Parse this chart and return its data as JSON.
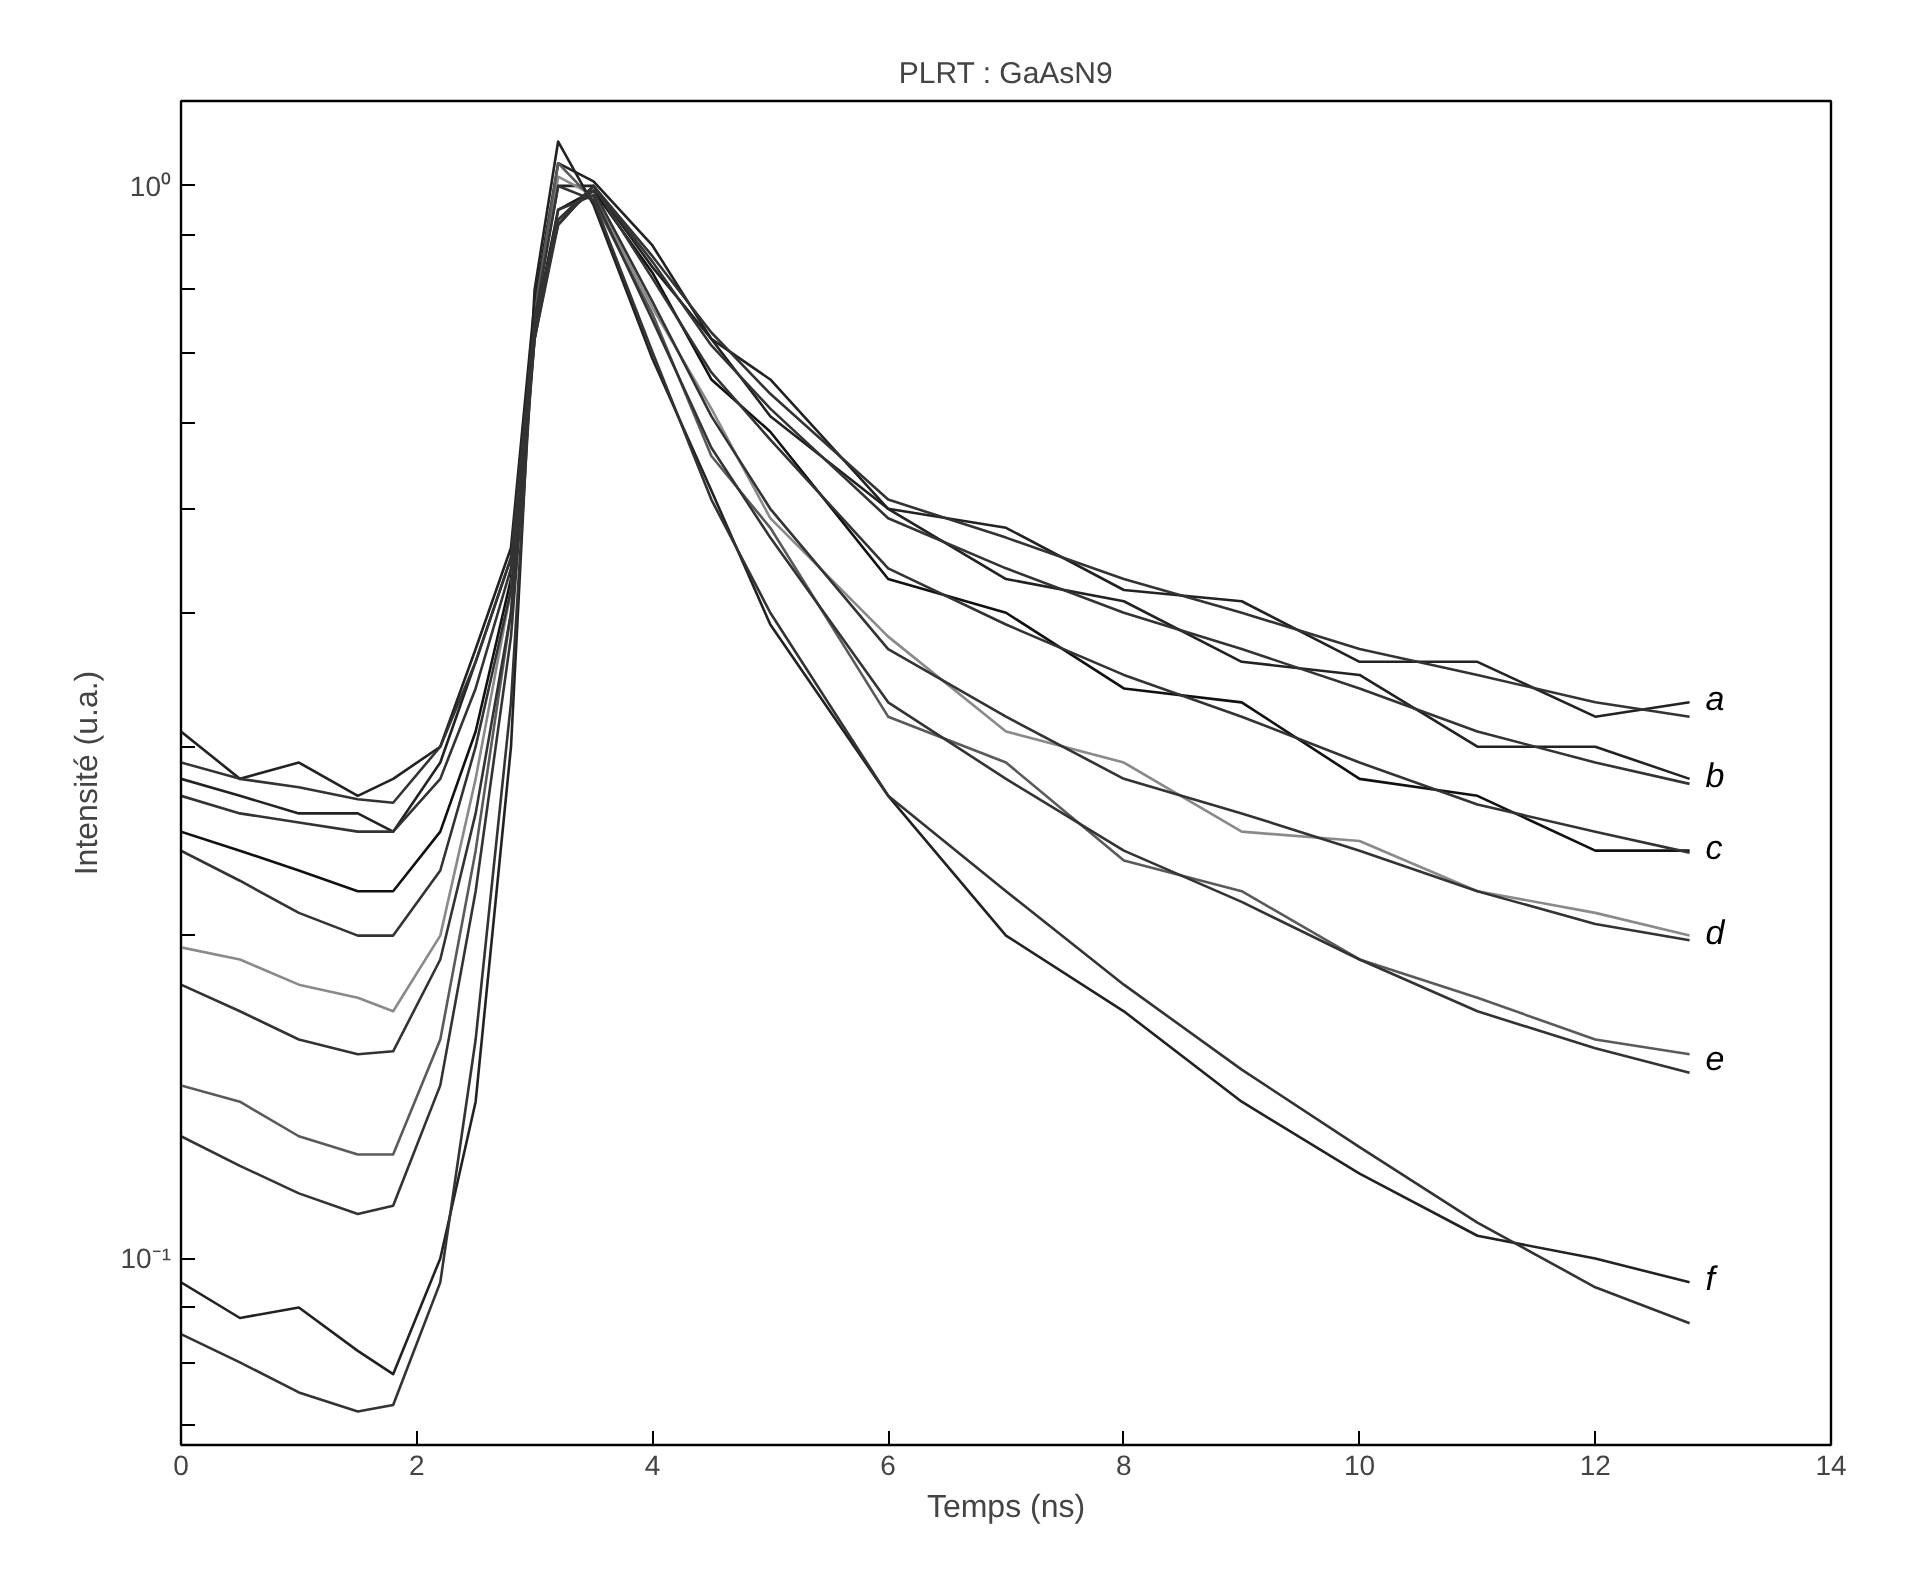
{
  "chart_data": {
    "type": "line",
    "title": "PLRT : GaAsN9",
    "xlabel": "Temps (ns)",
    "ylabel": "Intensité (u.a.)",
    "x": [
      0,
      0.5,
      1,
      1.5,
      1.8,
      2.2,
      2.5,
      2.8,
      3.0,
      3.2,
      3.5,
      4,
      4.5,
      5,
      6,
      7,
      8,
      9,
      10,
      11,
      12,
      12.8
    ],
    "log": "y",
    "grid": false,
    "legend": false,
    "marker": "none",
    "line_style": "solid",
    "xlim": [
      0,
      14
    ],
    "xticks": [
      0,
      2,
      4,
      6,
      8,
      10,
      12,
      14
    ],
    "ylim": [
      0.067,
      1.2
    ],
    "yticks": [
      {
        "value": 0.07,
        "label": null
      },
      {
        "value": 0.08,
        "label": null
      },
      {
        "value": 0.09,
        "label": null
      },
      {
        "value": 0.1,
        "label": "10⁻¹"
      },
      {
        "value": 0.2,
        "label": null
      },
      {
        "value": 0.3,
        "label": null
      },
      {
        "value": 0.4,
        "label": null
      },
      {
        "value": 0.5,
        "label": null
      },
      {
        "value": 0.6,
        "label": null
      },
      {
        "value": 0.7,
        "label": null
      },
      {
        "value": 0.8,
        "label": null
      },
      {
        "value": 0.9,
        "label": null
      },
      {
        "value": 1,
        "label": "10⁰"
      }
    ],
    "series": [
      {
        "name": "a",
        "color": "#222222",
        "values": [
          0.31,
          0.28,
          0.29,
          0.27,
          0.28,
          0.3,
          0.37,
          0.46,
          0.78,
          1.05,
          1.01,
          0.88,
          0.72,
          0.66,
          0.5,
          0.48,
          0.42,
          0.41,
          0.36,
          0.36,
          0.32,
          0.33
        ]
      },
      {
        "name": "b",
        "color": "#222222",
        "values": [
          0.28,
          0.27,
          0.26,
          0.26,
          0.25,
          0.29,
          0.36,
          0.45,
          0.76,
          1.0,
          1.0,
          0.84,
          0.72,
          0.61,
          0.5,
          0.43,
          0.41,
          0.36,
          0.35,
          0.3,
          0.3,
          0.28
        ]
      },
      {
        "name": "c",
        "color": "#111111",
        "values": [
          0.25,
          0.24,
          0.23,
          0.22,
          0.22,
          0.25,
          0.31,
          0.43,
          0.74,
          0.95,
          0.99,
          0.83,
          0.66,
          0.59,
          0.43,
          0.4,
          0.34,
          0.33,
          0.28,
          0.27,
          0.24,
          0.24
        ]
      },
      {
        "name": "d",
        "color": "#8a8a8a",
        "values": [
          0.195,
          0.19,
          0.18,
          0.175,
          0.17,
          0.2,
          0.28,
          0.42,
          0.75,
          1.02,
          0.98,
          0.77,
          0.62,
          0.49,
          0.38,
          0.31,
          0.29,
          0.25,
          0.245,
          0.22,
          0.21,
          0.2
        ]
      },
      {
        "name": "e",
        "color": "#5a5a5a",
        "values": [
          0.145,
          0.14,
          0.13,
          0.125,
          0.125,
          0.16,
          0.24,
          0.4,
          0.76,
          1.05,
          0.97,
          0.76,
          0.56,
          0.48,
          0.32,
          0.29,
          0.235,
          0.22,
          0.19,
          0.175,
          0.16,
          0.155
        ]
      },
      {
        "name": "f",
        "color": "#222222",
        "values": [
          0.095,
          0.088,
          0.09,
          0.082,
          0.078,
          0.1,
          0.14,
          0.3,
          0.8,
          1.1,
          0.96,
          0.69,
          0.52,
          0.39,
          0.27,
          0.2,
          0.17,
          0.14,
          0.12,
          0.105,
          0.1,
          0.095
        ]
      },
      {
        "color": "#333333",
        "values": [
          0.29,
          0.28,
          0.275,
          0.268,
          0.266,
          0.3,
          0.36,
          0.45,
          0.75,
          0.93,
          1.0,
          0.86,
          0.73,
          0.64,
          0.51,
          0.47,
          0.43,
          0.4,
          0.37,
          0.35,
          0.33,
          0.32
        ]
      },
      {
        "color": "#333333",
        "values": [
          0.27,
          0.26,
          0.255,
          0.25,
          0.25,
          0.28,
          0.34,
          0.44,
          0.74,
          0.92,
          1.0,
          0.85,
          0.71,
          0.62,
          0.49,
          0.44,
          0.4,
          0.37,
          0.34,
          0.31,
          0.29,
          0.277
        ]
      },
      {
        "color": "#333333",
        "values": [
          0.24,
          0.225,
          0.21,
          0.2,
          0.2,
          0.23,
          0.3,
          0.42,
          0.72,
          0.92,
          1.0,
          0.82,
          0.67,
          0.58,
          0.44,
          0.39,
          0.35,
          0.32,
          0.29,
          0.265,
          0.25,
          0.239
        ]
      },
      {
        "color": "#333333",
        "values": [
          0.18,
          0.17,
          0.16,
          0.155,
          0.156,
          0.19,
          0.26,
          0.4,
          0.72,
          0.93,
          0.99,
          0.78,
          0.61,
          0.5,
          0.37,
          0.32,
          0.28,
          0.26,
          0.24,
          0.22,
          0.205,
          0.198
        ]
      },
      {
        "color": "#333333",
        "values": [
          0.13,
          0.122,
          0.115,
          0.11,
          0.112,
          0.145,
          0.22,
          0.38,
          0.72,
          0.95,
          0.98,
          0.75,
          0.57,
          0.47,
          0.33,
          0.28,
          0.24,
          0.215,
          0.19,
          0.17,
          0.157,
          0.149
        ]
      },
      {
        "color": "#333333",
        "values": [
          0.085,
          0.08,
          0.075,
          0.072,
          0.073,
          0.095,
          0.16,
          0.33,
          0.75,
          1.0,
          0.97,
          0.7,
          0.51,
          0.4,
          0.27,
          0.22,
          0.18,
          0.15,
          0.127,
          0.108,
          0.094,
          0.087
        ]
      }
    ]
  }
}
